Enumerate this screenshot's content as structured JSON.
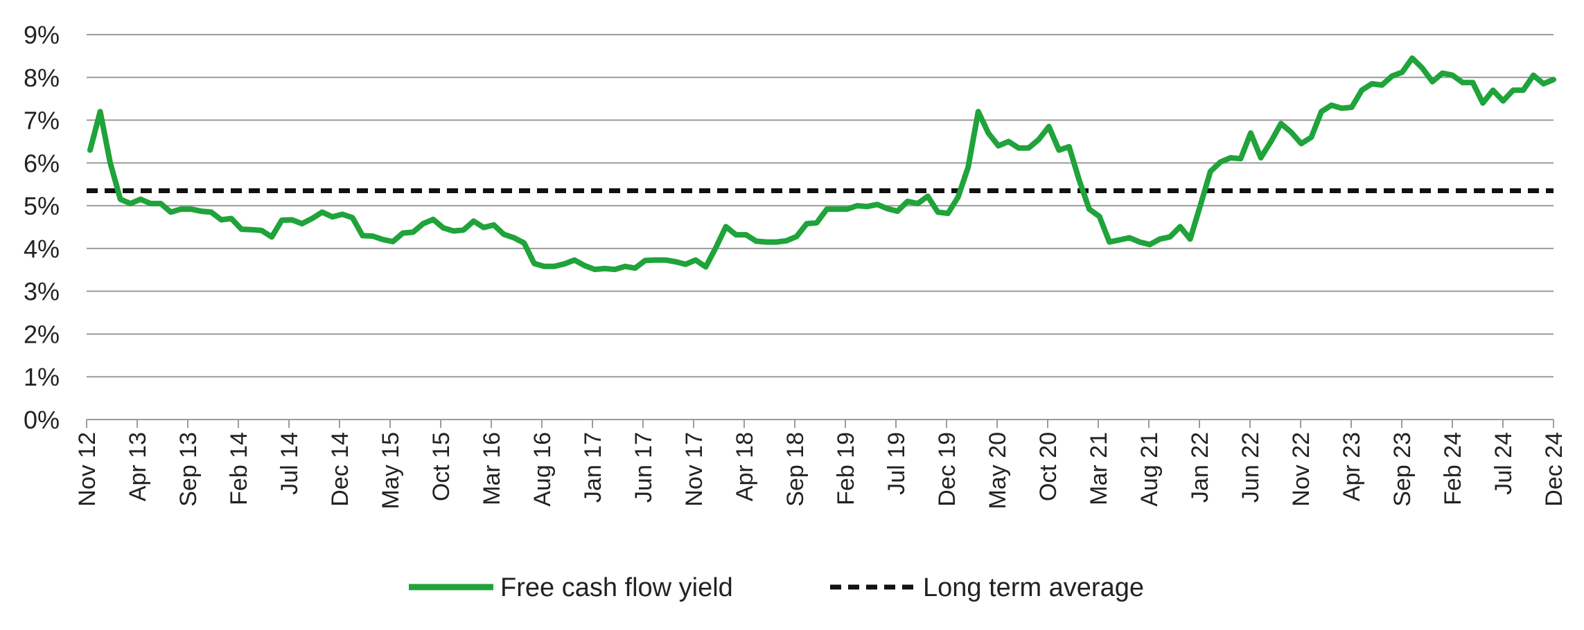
{
  "chart_data": {
    "type": "line",
    "title": "",
    "xlabel": "",
    "ylabel": "",
    "ylim": [
      0,
      9
    ],
    "y_ticks": [
      "0%",
      "1%",
      "2%",
      "3%",
      "4%",
      "5%",
      "6%",
      "7%",
      "8%",
      "9%"
    ],
    "x_tick_labels": [
      "Nov 12",
      "Apr 13",
      "Sep 13",
      "Feb 14",
      "Jul 14",
      "Dec 14",
      "May 15",
      "Oct 15",
      "Mar 16",
      "Aug 16",
      "Jan 17",
      "Jun 17",
      "Nov 17",
      "Apr 18",
      "Sep 18",
      "Feb 19",
      "Jul 19",
      "Dec 19",
      "May 20",
      "Oct 20",
      "Mar 21",
      "Aug 21",
      "Jan 22",
      "Jun 22",
      "Nov 22",
      "Apr 23",
      "Sep 23",
      "Feb 24",
      "Jul 24",
      "Dec 24"
    ],
    "grid": true,
    "legend_position": "bottom-center",
    "x_range": [
      "Nov 12",
      "Dec 24"
    ],
    "series": [
      {
        "name": "Free cash flow yield",
        "color": "#1fa33a",
        "style": "solid",
        "values": [
          6.3,
          7.2,
          6.0,
          5.15,
          5.05,
          5.15,
          5.05,
          5.05,
          4.85,
          4.92,
          4.92,
          4.87,
          4.85,
          4.67,
          4.7,
          4.45,
          4.44,
          4.42,
          4.27,
          4.66,
          4.67,
          4.58,
          4.7,
          4.85,
          4.74,
          4.8,
          4.72,
          4.3,
          4.29,
          4.21,
          4.16,
          4.36,
          4.38,
          4.58,
          4.68,
          4.48,
          4.41,
          4.43,
          4.64,
          4.49,
          4.55,
          4.33,
          4.25,
          4.13,
          3.65,
          3.58,
          3.58,
          3.64,
          3.73,
          3.6,
          3.51,
          3.53,
          3.51,
          3.58,
          3.54,
          3.72,
          3.73,
          3.73,
          3.69,
          3.63,
          3.73,
          3.57,
          4.02,
          4.51,
          4.32,
          4.32,
          4.17,
          4.15,
          4.15,
          4.18,
          4.28,
          4.58,
          4.6,
          4.92,
          4.92,
          4.92,
          5.0,
          4.98,
          5.03,
          4.93,
          4.87,
          5.1,
          5.05,
          5.22,
          4.85,
          4.82,
          5.2,
          5.9,
          7.2,
          6.7,
          6.4,
          6.5,
          6.35,
          6.35,
          6.55,
          6.85,
          6.3,
          6.38,
          5.6,
          4.92,
          4.75,
          4.15,
          4.2,
          4.25,
          4.15,
          4.09,
          4.22,
          4.27,
          4.51,
          4.22,
          5.0,
          5.8,
          6.02,
          6.12,
          6.1,
          6.7,
          6.12,
          6.5,
          6.92,
          6.72,
          6.45,
          6.6,
          7.2,
          7.35,
          7.28,
          7.3,
          7.7,
          7.85,
          7.82,
          8.03,
          8.12,
          8.45,
          8.22,
          7.9,
          8.1,
          8.05,
          7.88,
          7.88,
          7.4,
          7.7,
          7.45,
          7.7,
          7.7,
          8.05,
          7.85,
          7.95
        ]
      },
      {
        "name": "Long term average",
        "color": "#111111",
        "style": "dashed",
        "values": [
          5.35
        ]
      }
    ]
  }
}
